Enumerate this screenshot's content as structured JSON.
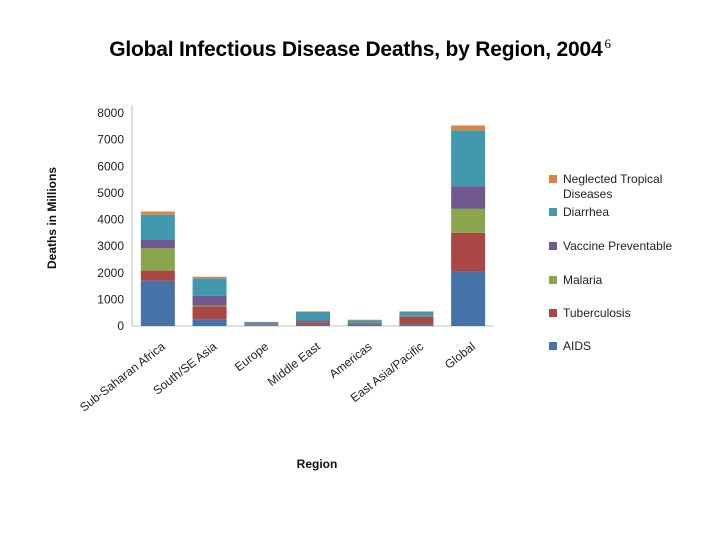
{
  "slide": {
    "title": "Global Infectious Disease Deaths, by Region, 2004",
    "footnote": "6"
  },
  "colors": {
    "aids": "#4572a7",
    "tuberculosis": "#aa4643",
    "malaria": "#89a54e",
    "vaccine": "#71588f",
    "diarrhea": "#4198af",
    "ntd": "#db843d"
  },
  "chart_data": {
    "type": "bar",
    "stacked": true,
    "title": "Global Infectious Disease Deaths, by Region, 2004",
    "xlabel": "Region",
    "ylabel": "Deaths in Millions",
    "ylim": [
      0,
      8000
    ],
    "yticks": [
      0,
      1000,
      2000,
      3000,
      4000,
      5000,
      6000,
      7000,
      8000
    ],
    "categories": [
      "Sub-Saharan Africa",
      "South/SE Asia",
      "Europe",
      "Middle East",
      "Americas",
      "East Asia/Pacific",
      "Global"
    ],
    "series": [
      {
        "name": "AIDS",
        "color_key": "aids",
        "values": [
          1700,
          250,
          30,
          40,
          60,
          60,
          2050
        ]
      },
      {
        "name": "Tuberculosis",
        "color_key": "tuberculosis",
        "values": [
          380,
          480,
          20,
          90,
          30,
          290,
          1450
        ]
      },
      {
        "name": "Malaria",
        "color_key": "malaria",
        "values": [
          850,
          40,
          0,
          20,
          5,
          10,
          900
        ]
      },
      {
        "name": "Vaccine Preventable",
        "color_key": "vaccine",
        "values": [
          300,
          360,
          20,
          60,
          20,
          20,
          850
        ]
      },
      {
        "name": "Diarrhea",
        "color_key": "diarrhea",
        "values": [
          950,
          660,
          80,
          320,
          90,
          160,
          2100
        ]
      },
      {
        "name": "Neglected Tropical Diseases",
        "color_key": "ntd",
        "values": [
          120,
          60,
          5,
          20,
          30,
          10,
          180
        ]
      }
    ],
    "legend": {
      "placement": "right",
      "entries": [
        {
          "label": "Neglected Tropical Diseases",
          "color_key": "ntd"
        },
        {
          "label": "Diarrhea",
          "color_key": "diarrhea"
        },
        {
          "label": "Vaccine Preventable",
          "color_key": "vaccine"
        },
        {
          "label": "Malaria",
          "color_key": "malaria"
        },
        {
          "label": "Tuberculosis",
          "color_key": "tuberculosis"
        },
        {
          "label": "AIDS",
          "color_key": "aids"
        }
      ]
    }
  }
}
